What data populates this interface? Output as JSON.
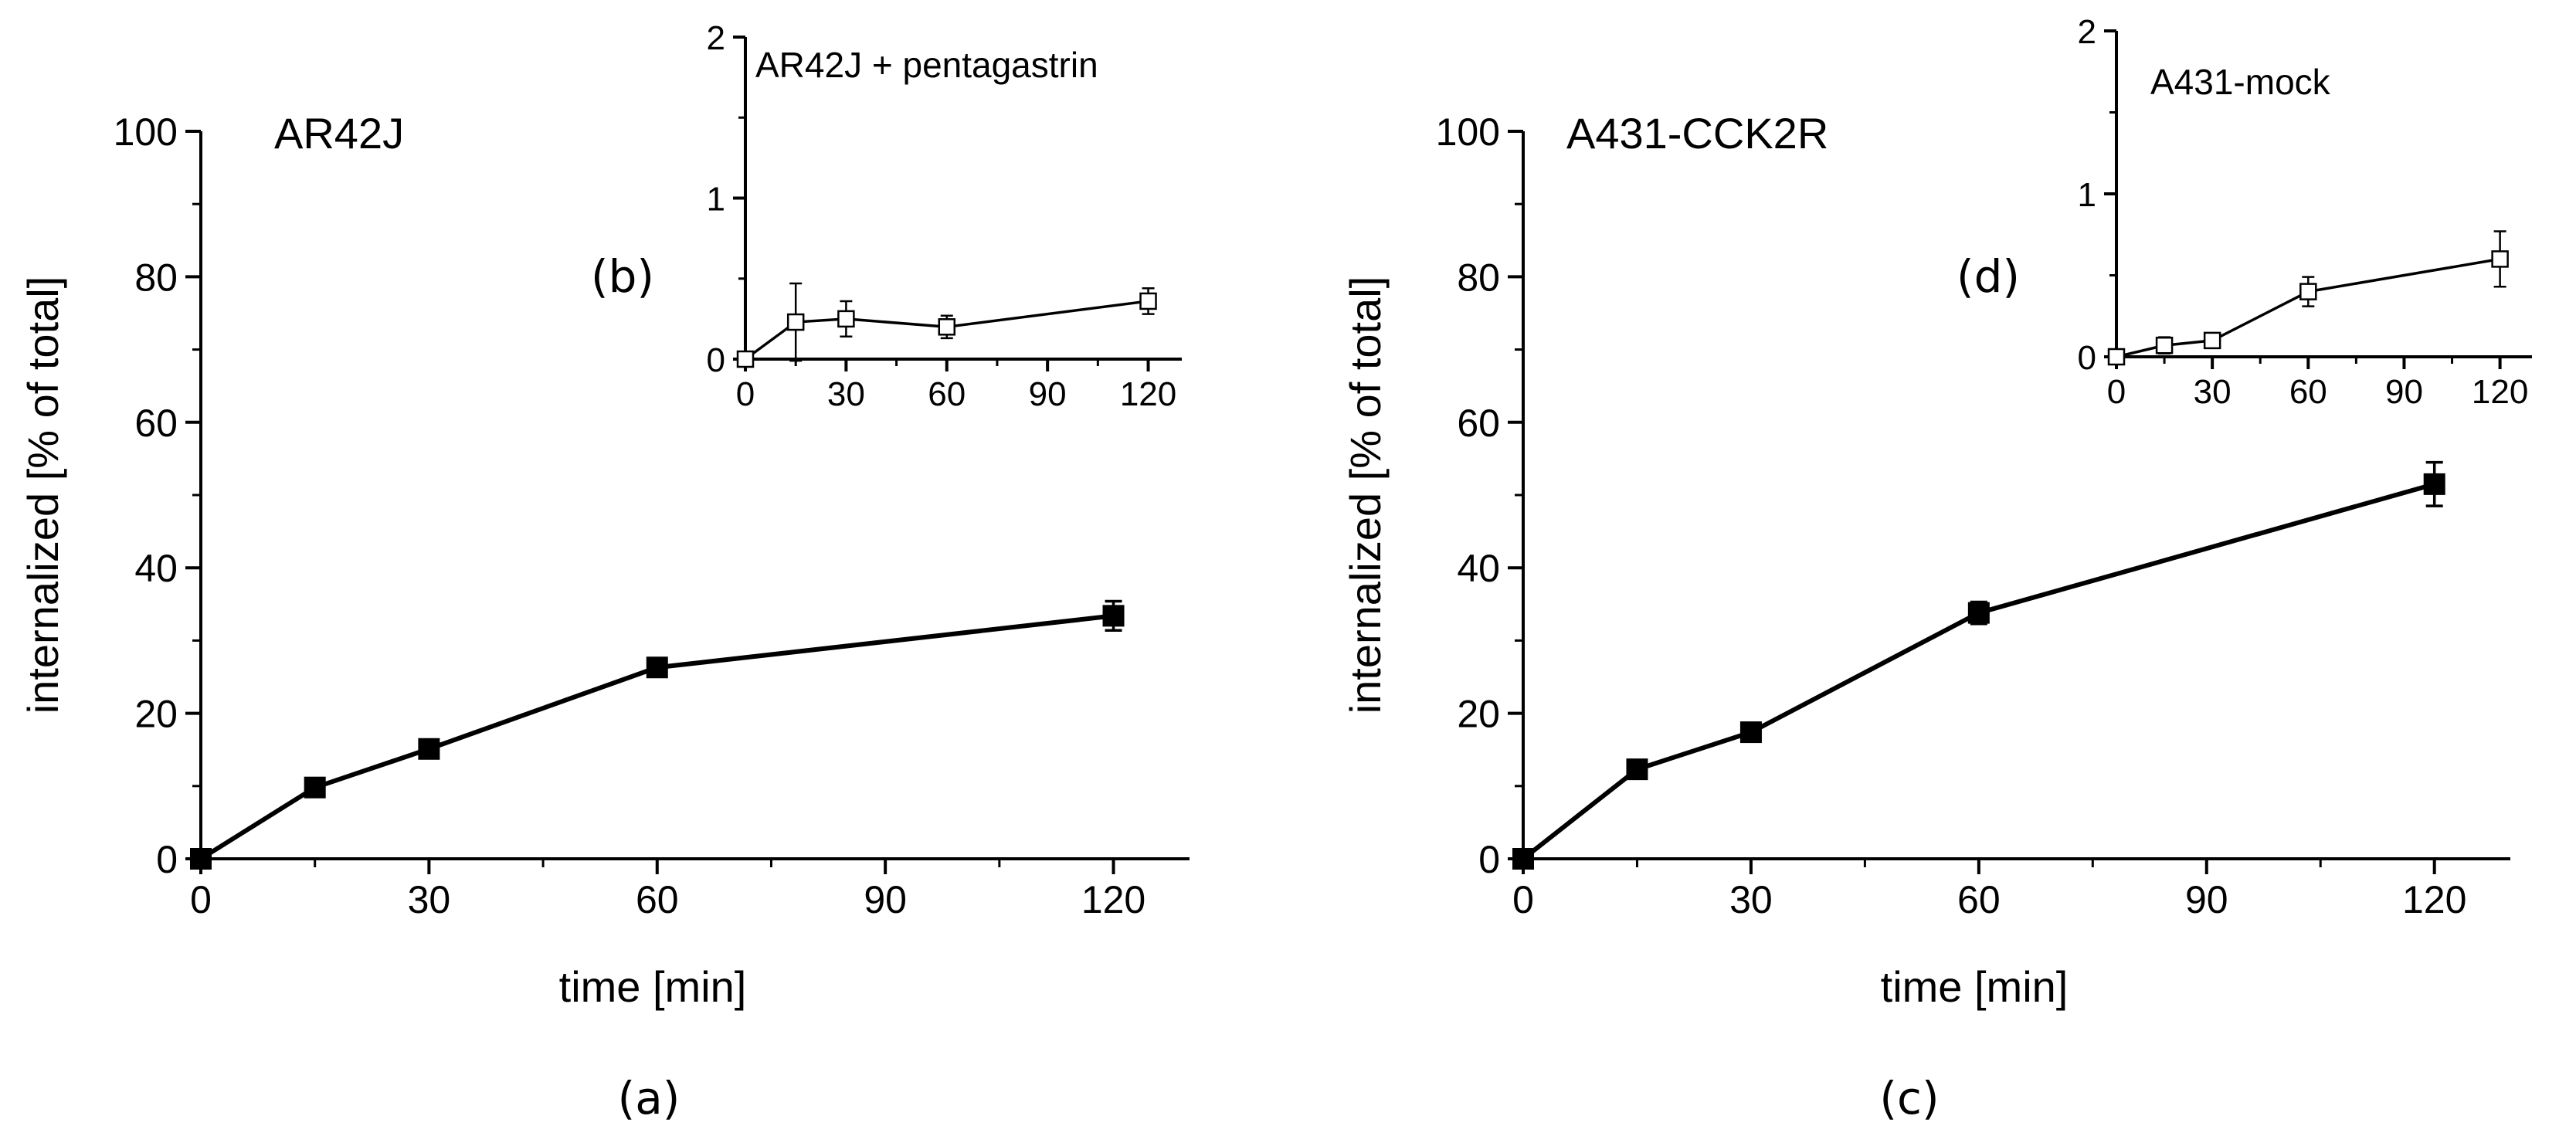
{
  "chart_data": [
    {
      "id": "a",
      "type": "line",
      "panel_label": "(a)",
      "title": "AR42J",
      "xlabel": "time [min]",
      "ylabel": "internalized [% of total]",
      "xlim": [
        0,
        130
      ],
      "ylim": [
        0,
        100
      ],
      "xticks": [
        0,
        30,
        60,
        90,
        120
      ],
      "yticks": [
        0,
        20,
        40,
        60,
        80,
        100
      ],
      "xtick_labels": [
        "0",
        "30",
        "60",
        "90",
        "120"
      ],
      "ytick_labels": [
        "0",
        "20",
        "40",
        "60",
        "80",
        "100"
      ],
      "marker": "filled-square",
      "series": [
        {
          "name": "AR42J",
          "x": [
            0,
            15,
            30,
            60,
            120
          ],
          "y": [
            0,
            9.8,
            15.1,
            26.3,
            33.4
          ],
          "err": [
            0,
            0.6,
            1.2,
            0.8,
            2.0
          ]
        }
      ]
    },
    {
      "id": "b",
      "type": "line",
      "panel_label": "(b)",
      "title": "AR42J + pentagastrin",
      "xlabel": "",
      "ylabel": "",
      "xlim": [
        0,
        130
      ],
      "ylim": [
        0,
        2
      ],
      "xticks": [
        0,
        30,
        60,
        90,
        120
      ],
      "yticks": [
        0,
        1,
        2
      ],
      "xtick_labels": [
        "0",
        "30",
        "60",
        "90",
        "120"
      ],
      "ytick_labels": [
        "0",
        "1",
        "2"
      ],
      "marker": "open-square",
      "series": [
        {
          "name": "AR42J + pentagastrin",
          "x": [
            0,
            15,
            30,
            60,
            120
          ],
          "y": [
            0,
            0.23,
            0.25,
            0.2,
            0.36
          ],
          "err": [
            0,
            0.24,
            0.11,
            0.07,
            0.08
          ]
        }
      ]
    },
    {
      "id": "c",
      "type": "line",
      "panel_label": "(c)",
      "title": "A431-CCK2R",
      "xlabel": "time [min]",
      "ylabel": "internalized [% of total]",
      "xlim": [
        0,
        130
      ],
      "ylim": [
        0,
        100
      ],
      "xticks": [
        0,
        30,
        60,
        90,
        120
      ],
      "yticks": [
        0,
        20,
        40,
        60,
        80,
        100
      ],
      "xtick_labels": [
        "0",
        "30",
        "60",
        "90",
        "120"
      ],
      "ytick_labels": [
        "0",
        "20",
        "40",
        "60",
        "80",
        "100"
      ],
      "marker": "filled-square",
      "series": [
        {
          "name": "A431-CCK2R",
          "x": [
            0,
            15,
            30,
            60,
            120
          ],
          "y": [
            0,
            12.3,
            17.4,
            33.8,
            51.5
          ],
          "err": [
            0,
            0.7,
            0.8,
            1.5,
            3.0
          ]
        }
      ]
    },
    {
      "id": "d",
      "type": "line",
      "panel_label": "(d)",
      "title": "A431-mock",
      "xlabel": "",
      "ylabel": "",
      "xlim": [
        0,
        130
      ],
      "ylim": [
        0,
        2
      ],
      "xticks": [
        0,
        30,
        60,
        90,
        120
      ],
      "yticks": [
        0,
        1,
        2
      ],
      "xtick_labels": [
        "0",
        "30",
        "60",
        "90",
        "120"
      ],
      "ytick_labels": [
        "0",
        "1",
        "2"
      ],
      "marker": "open-square",
      "series": [
        {
          "name": "A431-mock",
          "x": [
            0,
            15,
            30,
            60,
            120
          ],
          "y": [
            0,
            0.07,
            0.1,
            0.4,
            0.6
          ],
          "err": [
            0,
            0.05,
            0.03,
            0.09,
            0.17
          ]
        }
      ]
    }
  ]
}
